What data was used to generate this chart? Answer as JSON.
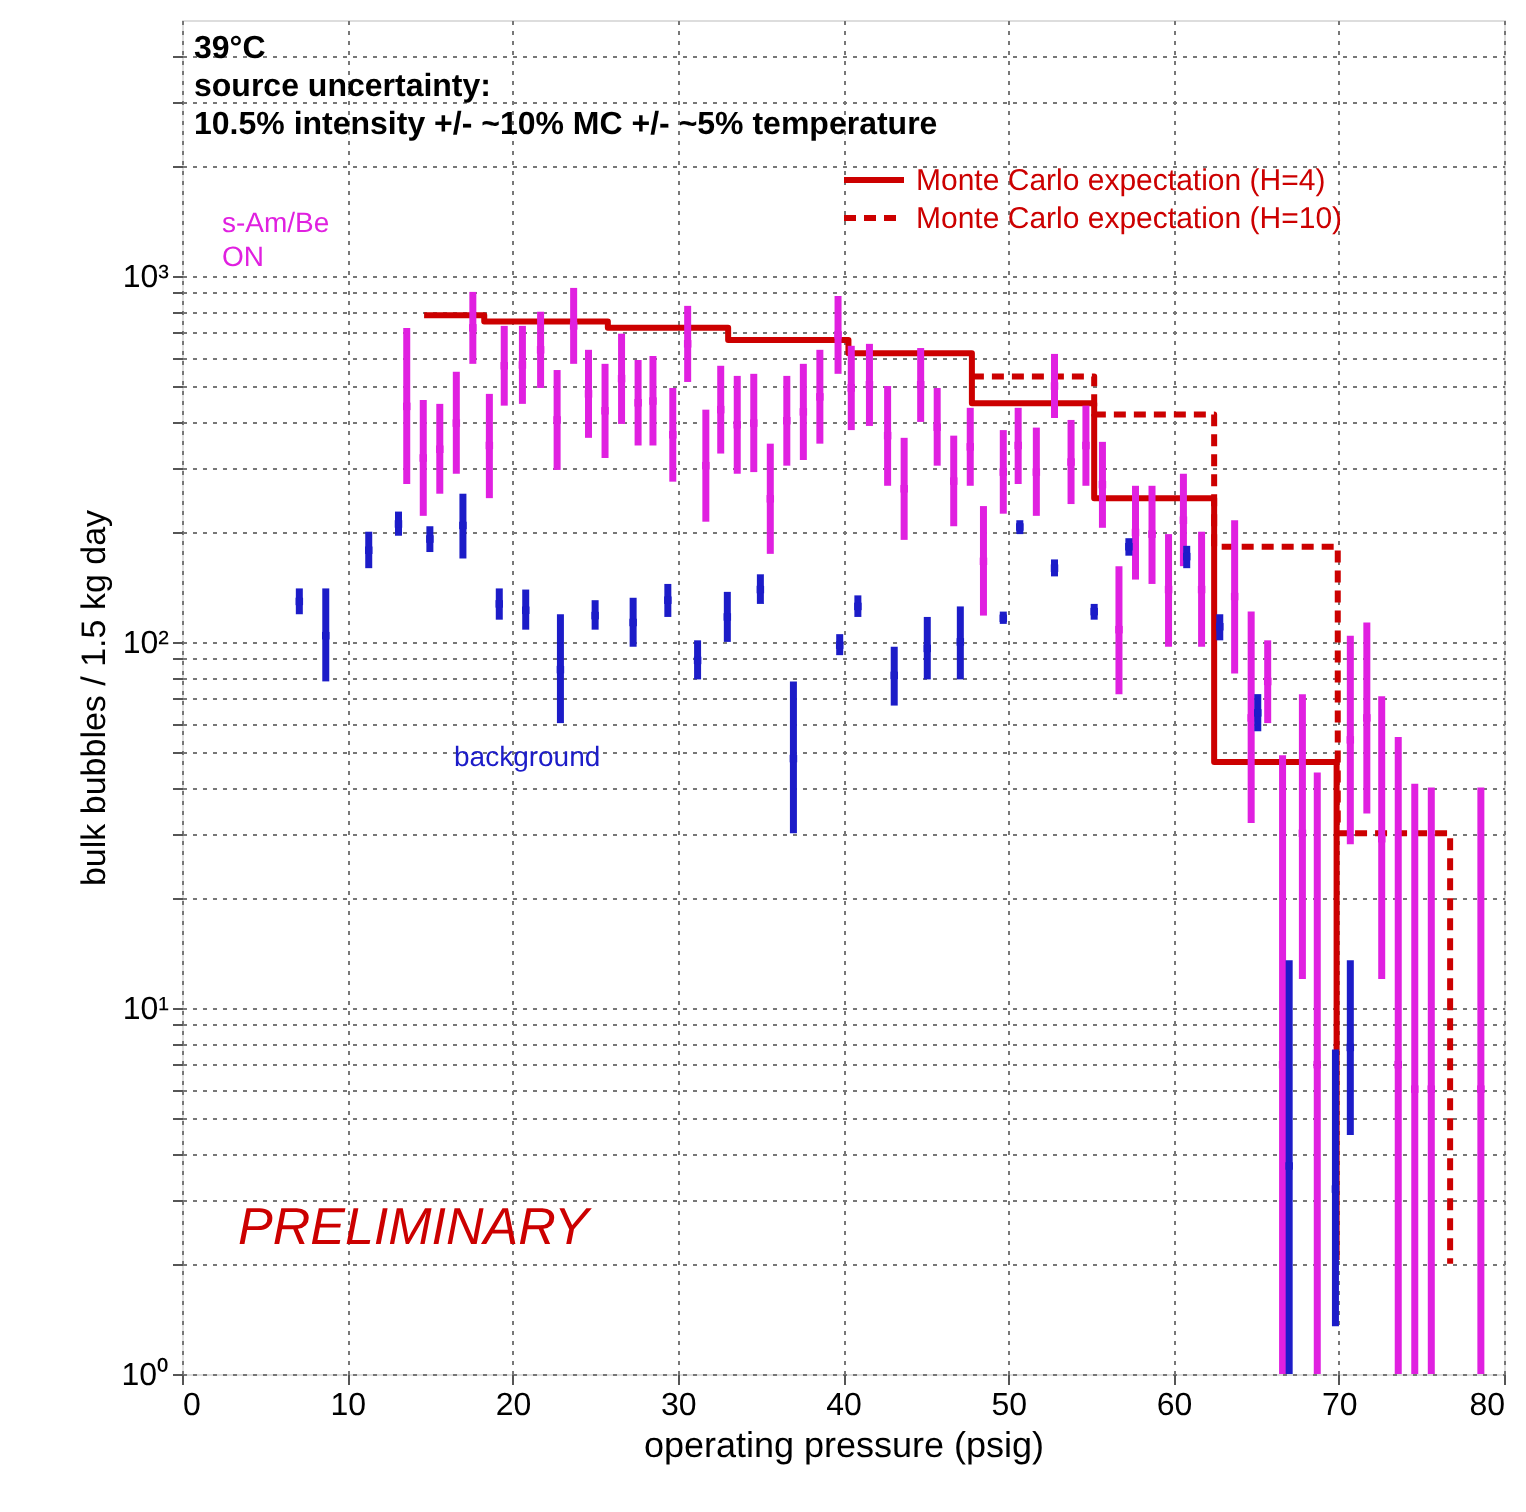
{
  "chart_data": {
    "type": "scatter",
    "title": "39°C",
    "subtitle": "source uncertainty:\n10.5% intensity +/- ~10% MC +/- ~5% temperature",
    "xlabel": "operating pressure (psig)",
    "ylabel": "bulk bubbles / 1.5 kg day",
    "annotations": [
      "PRELIMINARY"
    ],
    "xlim": [
      0,
      80
    ],
    "xticks": [
      0,
      10,
      20,
      30,
      40,
      50,
      60,
      70,
      80
    ],
    "ylim": [
      1,
      5000
    ],
    "log": true,
    "grid": true,
    "legend": "top right",
    "yticks": [
      {
        "value": 1,
        "label": "10⁰"
      },
      {
        "value": 2,
        "label": null
      },
      {
        "value": 3,
        "label": null
      },
      {
        "value": 4,
        "label": null
      },
      {
        "value": 5,
        "label": null
      },
      {
        "value": 6,
        "label": null
      },
      {
        "value": 7,
        "label": null
      },
      {
        "value": 8,
        "label": null
      },
      {
        "value": 9,
        "label": null
      },
      {
        "value": 10,
        "label": "10¹"
      },
      {
        "value": 20,
        "label": null
      },
      {
        "value": 30,
        "label": null
      },
      {
        "value": 40,
        "label": null
      },
      {
        "value": 50,
        "label": null
      },
      {
        "value": 60,
        "label": null
      },
      {
        "value": 70,
        "label": null
      },
      {
        "value": 80,
        "label": null
      },
      {
        "value": 90,
        "label": null
      },
      {
        "value": 100,
        "label": "10²"
      },
      {
        "value": 200,
        "label": null
      },
      {
        "value": 300,
        "label": null
      },
      {
        "value": 400,
        "label": null
      },
      {
        "value": 500,
        "label": null
      },
      {
        "value": 600,
        "label": null
      },
      {
        "value": 700,
        "label": null
      },
      {
        "value": 800,
        "label": null
      },
      {
        "value": 900,
        "label": null
      },
      {
        "value": 1000,
        "label": "10³"
      },
      {
        "value": 2000,
        "label": null
      },
      {
        "value": 3000,
        "label": null
      },
      {
        "value": 4000,
        "label": null
      }
    ],
    "series": [
      {
        "name": "s-Am/Be ON",
        "color": "#e020e0",
        "marker": "square",
        "x": [
          13.6,
          14.6,
          15.6,
          16.6,
          17.6,
          18.6,
          19.5,
          20.6,
          21.7,
          22.7,
          23.7,
          24.6,
          25.6,
          26.6,
          27.6,
          28.5,
          29.7,
          30.6,
          31.7,
          32.6,
          33.6,
          34.6,
          35.6,
          36.6,
          37.6,
          38.6,
          39.7,
          40.5,
          41.6,
          42.7,
          43.7,
          44.7,
          45.7,
          46.7,
          47.7,
          48.5,
          49.7,
          50.6,
          51.7,
          52.8,
          53.8,
          54.7,
          55.7,
          56.7,
          57.7,
          58.7,
          59.7,
          60.6,
          61.7,
          63.7,
          64.7,
          65.7,
          66.6,
          67.8,
          68.7,
          70.7,
          71.7,
          72.6,
          73.6,
          74.6,
          75.6,
          78.6
        ],
        "values": [
          440,
          318,
          336,
          396,
          721,
          344,
          568,
          571,
          628,
          404,
          730,
          476,
          428,
          524,
          450,
          455,
          368,
          652,
          303,
          431,
          392,
          396,
          246,
          402,
          425,
          467,
          690,
          494,
          504,
          366,
          262,
          504,
          386,
          275,
          341,
          166,
          291,
          344,
          291,
          500,
          310,
          344,
          269,
          108,
          199,
          197,
          139,
          215,
          139,
          133,
          62,
          78,
          7,
          30,
          7,
          54,
          62,
          29,
          7,
          6,
          6,
          6
        ],
        "errors": [
          [
            270,
            720
          ],
          [
            221,
            458
          ],
          [
            254,
            447
          ],
          [
            288,
            547
          ],
          [
            575,
            904
          ],
          [
            247,
            476
          ],
          [
            442,
            730
          ],
          [
            447,
            730
          ],
          [
            494,
            798
          ],
          [
            295,
            553
          ],
          [
            575,
            927
          ],
          [
            361,
            628
          ],
          [
            318,
            575
          ],
          [
            394,
            695
          ],
          [
            344,
            589
          ],
          [
            344,
            604
          ],
          [
            274,
            494
          ],
          [
            513,
            828
          ],
          [
            213,
            431
          ],
          [
            327,
            568
          ],
          [
            288,
            533
          ],
          [
            291,
            540
          ],
          [
            174,
            348
          ],
          [
            303,
            533
          ],
          [
            314,
            575
          ],
          [
            348,
            628
          ],
          [
            540,
            881
          ],
          [
            379,
            644
          ],
          [
            389,
            652
          ],
          [
            267,
            500
          ],
          [
            190,
            361
          ],
          [
            399,
            635
          ],
          [
            303,
            494
          ],
          [
            207,
            366
          ],
          [
            267,
            436
          ],
          [
            118,
            235
          ],
          [
            224,
            379
          ],
          [
            270,
            436
          ],
          [
            221,
            385
          ],
          [
            409,
            612
          ],
          [
            238,
            404
          ],
          [
            267,
            442
          ],
          [
            205,
            352
          ],
          [
            72,
            161
          ],
          [
            148,
            267
          ],
          [
            144,
            267
          ],
          [
            97,
            197
          ],
          [
            161,
            288
          ],
          [
            97,
            200
          ],
          [
            82,
            215
          ],
          [
            32,
            121
          ],
          [
            60,
            101
          ],
          [
            1,
            49
          ],
          [
            12,
            72
          ],
          [
            1,
            44
          ],
          [
            28,
            104
          ],
          [
            34,
            113
          ],
          [
            12,
            71
          ],
          [
            1,
            55
          ],
          [
            1,
            41
          ],
          [
            1,
            40
          ],
          [
            1,
            40
          ]
        ]
      },
      {
        "name": "background",
        "color": "#1c1cc8",
        "marker": "square",
        "x": [
          7.1,
          8.7,
          11.3,
          13.1,
          15.0,
          17.0,
          19.2,
          20.8,
          22.9,
          25.0,
          27.3,
          29.4,
          31.2,
          33.0,
          35.0,
          37.0,
          39.8,
          40.9,
          43.1,
          45.1,
          47.1,
          49.7,
          50.7,
          52.8,
          55.2,
          57.3,
          60.8,
          62.8,
          65.1,
          67.0,
          69.8,
          70.7
        ],
        "values": [
          129,
          104,
          178,
          210,
          191,
          208,
          127,
          122,
          84,
          118,
          113,
          130,
          89,
          117,
          139,
          48,
          98,
          125,
          81,
          96,
          100,
          116,
          206,
          159,
          121,
          182,
          171,
          110,
          64,
          3.7,
          3.2,
          7.8
        ],
        "errors": [
          [
            119,
            140
          ],
          [
            78,
            140
          ],
          [
            159,
            200
          ],
          [
            195,
            227
          ],
          [
            176,
            207
          ],
          [
            169,
            254
          ],
          [
            115,
            140
          ],
          [
            108,
            139
          ],
          [
            60,
            119
          ],
          [
            108,
            130
          ],
          [
            97,
            132
          ],
          [
            117,
            144
          ],
          [
            79,
            101
          ],
          [
            100,
            137
          ],
          [
            127,
            153
          ],
          [
            30,
            78
          ],
          [
            92,
            105
          ],
          [
            117,
            134
          ],
          [
            67,
            97
          ],
          [
            79,
            117
          ],
          [
            79,
            125
          ],
          [
            112,
            121
          ],
          [
            197,
            215
          ],
          [
            151,
            168
          ],
          [
            115,
            127
          ],
          [
            172,
            192
          ],
          [
            159,
            183
          ],
          [
            101,
            119
          ],
          [
            57,
            72
          ],
          [
            1,
            13.5
          ],
          [
            1.35,
            7.7
          ],
          [
            4.5,
            13.5
          ]
        ]
      },
      {
        "name": "Monte Carlo expectation (H=4)",
        "type": "step",
        "color": "#cc0000",
        "line_style": "solid",
        "x": [
          14.65,
          18.29,
          25.77,
          33.05,
          40.33,
          47.8,
          55.2,
          62.46,
          69.87
        ],
        "values": [
          780,
          751,
          721,
          668,
          615,
          449,
          247,
          47,
          2.05
        ]
      },
      {
        "name": "Monte Carlo expectation (H=10)",
        "type": "step",
        "color": "#cc0000",
        "line_style": "dashed",
        "x": [
          47.8,
          55.2,
          62.46,
          69.94,
          76.74
        ],
        "values": [
          531,
          418,
          182,
          30,
          2.0
        ]
      }
    ]
  }
}
